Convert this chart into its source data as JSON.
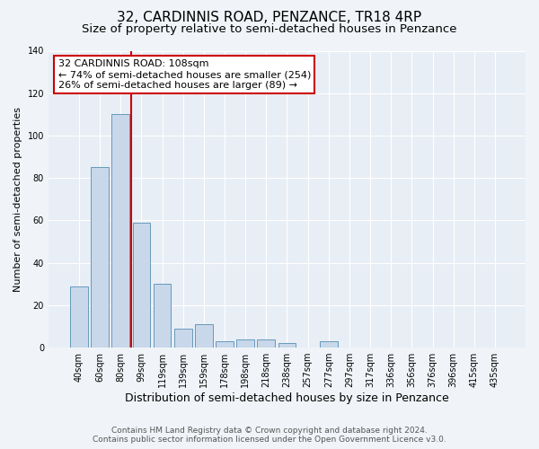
{
  "title": "32, CARDINNIS ROAD, PENZANCE, TR18 4RP",
  "subtitle": "Size of property relative to semi-detached houses in Penzance",
  "xlabel": "Distribution of semi-detached houses by size in Penzance",
  "ylabel": "Number of semi-detached properties",
  "bar_labels": [
    "40sqm",
    "60sqm",
    "80sqm",
    "99sqm",
    "119sqm",
    "139sqm",
    "159sqm",
    "178sqm",
    "198sqm",
    "218sqm",
    "238sqm",
    "257sqm",
    "277sqm",
    "297sqm",
    "317sqm",
    "336sqm",
    "356sqm",
    "376sqm",
    "396sqm",
    "415sqm",
    "435sqm"
  ],
  "bar_values": [
    29,
    85,
    110,
    59,
    30,
    9,
    11,
    3,
    4,
    4,
    2,
    0,
    3,
    0,
    0,
    0,
    0,
    0,
    0,
    0,
    0
  ],
  "bar_color": "#c8d8ea",
  "bar_edge_color": "#6699bb",
  "vline_pos": 2.5,
  "vline_color": "#cc0000",
  "annotation_title": "32 CARDINNIS ROAD: 108sqm",
  "annotation_line1": "← 74% of semi-detached houses are smaller (254)",
  "annotation_line2": "26% of semi-detached houses are larger (89) →",
  "annotation_box_facecolor": "#ffffff",
  "annotation_box_edgecolor": "#cc0000",
  "ylim": [
    0,
    140
  ],
  "yticks": [
    0,
    20,
    40,
    60,
    80,
    100,
    120,
    140
  ],
  "background_color": "#f0f4f8",
  "plot_background": "#e8eef5",
  "grid_color": "#ffffff",
  "footer_line1": "Contains HM Land Registry data © Crown copyright and database right 2024.",
  "footer_line2": "Contains public sector information licensed under the Open Government Licence v3.0.",
  "title_fontsize": 11,
  "subtitle_fontsize": 9.5,
  "xlabel_fontsize": 9,
  "ylabel_fontsize": 8,
  "tick_fontsize": 7,
  "annotation_fontsize": 8,
  "footer_fontsize": 6.5
}
